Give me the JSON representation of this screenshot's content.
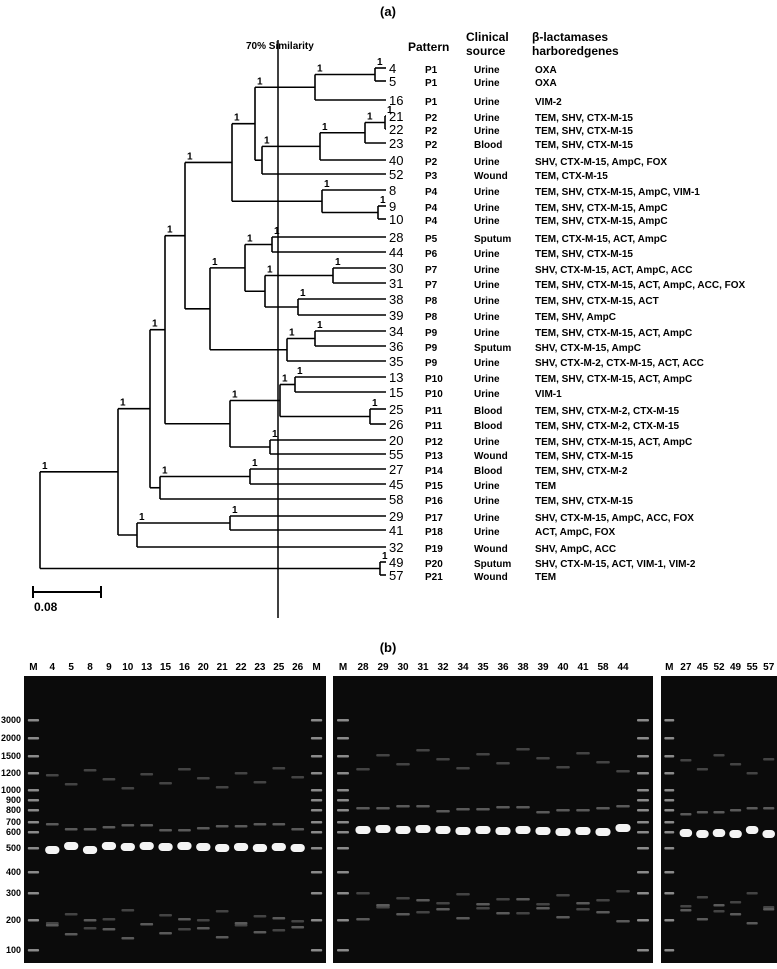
{
  "panel_a": {
    "label": "(a)",
    "similarity_label": "70% Similarity",
    "scale_label": "0.08",
    "headers": {
      "pattern": "Pattern",
      "source": [
        "Clinical",
        "source"
      ],
      "genes": [
        "β-lactamases",
        "harboredgenes"
      ]
    },
    "node_labels": [
      "1",
      "1",
      "1",
      "1",
      "1",
      "1",
      "1",
      "1",
      "1",
      "1",
      "1",
      "1",
      "1",
      "1",
      "1",
      "1",
      "1",
      "1",
      "1",
      "1",
      "1",
      "1",
      "1",
      "1",
      "1",
      "1",
      "1",
      "1",
      "1",
      "1",
      "1",
      "1",
      "1"
    ],
    "rows": [
      {
        "leaf": "4",
        "pattern": "P1",
        "source": "Urine",
        "genes": "OXA"
      },
      {
        "leaf": "5",
        "pattern": "P1",
        "source": "Urine",
        "genes": "OXA"
      },
      {
        "leaf": "16",
        "pattern": "P1",
        "source": "Urine",
        "genes": "VIM-2"
      },
      {
        "leaf": "21",
        "pattern": "P2",
        "source": "Urine",
        "genes": "TEM, SHV, CTX-M-15"
      },
      {
        "leaf": "22",
        "pattern": "P2",
        "source": "Urine",
        "genes": "TEM, SHV, CTX-M-15"
      },
      {
        "leaf": "23",
        "pattern": "P2",
        "source": "Blood",
        "genes": "TEM, SHV, CTX-M-15"
      },
      {
        "leaf": "40",
        "pattern": "P2",
        "source": "Urine",
        "genes": "SHV, CTX-M-15, AmpC, FOX"
      },
      {
        "leaf": "52",
        "pattern": "P3",
        "source": "Wound",
        "genes": "TEM, CTX-M-15"
      },
      {
        "leaf": "8",
        "pattern": "P4",
        "source": "Urine",
        "genes": "TEM, SHV, CTX-M-15, AmpC, VIM-1"
      },
      {
        "leaf": "9",
        "pattern": "P4",
        "source": "Urine",
        "genes": "TEM, SHV, CTX-M-15, AmpC"
      },
      {
        "leaf": "10",
        "pattern": "P4",
        "source": "Urine",
        "genes": "TEM, SHV, CTX-M-15, AmpC"
      },
      {
        "leaf": "28",
        "pattern": "P5",
        "source": "Sputum",
        "genes": "TEM, CTX-M-15, ACT, AmpC"
      },
      {
        "leaf": "44",
        "pattern": "P6",
        "source": "Urine",
        "genes": "TEM, SHV, CTX-M-15"
      },
      {
        "leaf": "30",
        "pattern": "P7",
        "source": "Urine",
        "genes": "SHV, CTX-M-15, ACT, AmpC, ACC"
      },
      {
        "leaf": "31",
        "pattern": "P7",
        "source": "Urine",
        "genes": "TEM, SHV, CTX-M-15, ACT, AmpC, ACC, FOX"
      },
      {
        "leaf": "38",
        "pattern": "P8",
        "source": "Urine",
        "genes": "TEM, SHV, CTX-M-15, ACT"
      },
      {
        "leaf": "39",
        "pattern": "P8",
        "source": "Urine",
        "genes": "TEM, SHV, AmpC"
      },
      {
        "leaf": "34",
        "pattern": "P9",
        "source": "Urine",
        "genes": "TEM, SHV, CTX-M-15, ACT, AmpC"
      },
      {
        "leaf": "36",
        "pattern": "P9",
        "source": "Sputum",
        "genes": "SHV, CTX-M-15, AmpC"
      },
      {
        "leaf": "35",
        "pattern": "P9",
        "source": "Urine",
        "genes": "SHV, CTX-M-2, CTX-M-15, ACT, ACC"
      },
      {
        "leaf": "13",
        "pattern": "P10",
        "source": "Urine",
        "genes": "TEM, SHV, CTX-M-15, ACT, AmpC"
      },
      {
        "leaf": "15",
        "pattern": "P10",
        "source": "Urine",
        "genes": "VIM-1"
      },
      {
        "leaf": "25",
        "pattern": "P11",
        "source": "Blood",
        "genes": "TEM, SHV, CTX-M-2, CTX-M-15"
      },
      {
        "leaf": "26",
        "pattern": "P11",
        "source": "Blood",
        "genes": "TEM, SHV, CTX-M-2, CTX-M-15"
      },
      {
        "leaf": "20",
        "pattern": "P12",
        "source": "Urine",
        "genes": "TEM, SHV, CTX-M-15, ACT, AmpC"
      },
      {
        "leaf": "55",
        "pattern": "P13",
        "source": "Wound",
        "genes": "TEM, SHV, CTX-M-15"
      },
      {
        "leaf": "27",
        "pattern": "P14",
        "source": "Blood",
        "genes": "TEM, SHV, CTX-M-2"
      },
      {
        "leaf": "45",
        "pattern": "P15",
        "source": "Urine",
        "genes": "TEM"
      },
      {
        "leaf": "58",
        "pattern": "P16",
        "source": "Urine",
        "genes": "TEM, SHV, CTX-M-15"
      },
      {
        "leaf": "29",
        "pattern": "P17",
        "source": "Urine",
        "genes": "SHV, CTX-M-15, AmpC, ACC, FOX"
      },
      {
        "leaf": "41",
        "pattern": "P18",
        "source": "Urine",
        "genes": "ACT, AmpC, FOX"
      },
      {
        "leaf": "32",
        "pattern": "P19",
        "source": "Wound",
        "genes": "SHV, AmpC, ACC"
      },
      {
        "leaf": "49",
        "pattern": "P20",
        "source": "Sputum",
        "genes": "SHV, CTX-M-15, ACT, VIM-1, VIM-2"
      },
      {
        "leaf": "57",
        "pattern": "P21",
        "source": "Wound",
        "genes": "TEM"
      }
    ]
  },
  "panel_b": {
    "label": "(b)",
    "marker_sizes": [
      "3000",
      "2000",
      "1500",
      "1200",
      "1000",
      "900",
      "800",
      "700",
      "600",
      "500",
      "400",
      "300",
      "200",
      "100"
    ],
    "gels": [
      {
        "lanes": [
          "M",
          "4",
          "5",
          "8",
          "9",
          "10",
          "13",
          "15",
          "16",
          "20",
          "21",
          "22",
          "23",
          "25",
          "26",
          "M"
        ]
      },
      {
        "lanes": [
          "M",
          "28",
          "29",
          "30",
          "31",
          "32",
          "34",
          "35",
          "36",
          "38",
          "39",
          "40",
          "41",
          "58",
          "44"
        ]
      },
      {
        "lanes": [
          "M",
          "27",
          "45",
          "52",
          "49",
          "55",
          "57"
        ]
      }
    ]
  }
}
